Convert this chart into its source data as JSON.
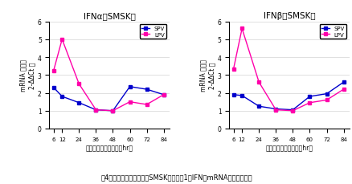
{
  "x": [
    6,
    12,
    24,
    36,
    48,
    60,
    72,
    84
  ],
  "alpha_SPV": [
    2.3,
    1.8,
    1.45,
    1.05,
    1.0,
    2.35,
    2.2,
    1.9
  ],
  "alpha_LPV": [
    3.25,
    5.0,
    2.5,
    1.05,
    1.0,
    1.5,
    1.35,
    1.9
  ],
  "beta_SPV": [
    1.9,
    1.85,
    1.25,
    1.1,
    1.05,
    1.8,
    1.95,
    2.6
  ],
  "beta_LPV": [
    3.35,
    5.6,
    2.6,
    1.05,
    1.0,
    1.45,
    1.6,
    2.2
  ],
  "color_SPV": "#0000cc",
  "color_LPV": "#ff00aa",
  "ylim": [
    0,
    6
  ],
  "yticks": [
    0,
    1,
    2,
    3,
    4,
    5,
    6
  ],
  "bg_color": "#ffffff"
}
